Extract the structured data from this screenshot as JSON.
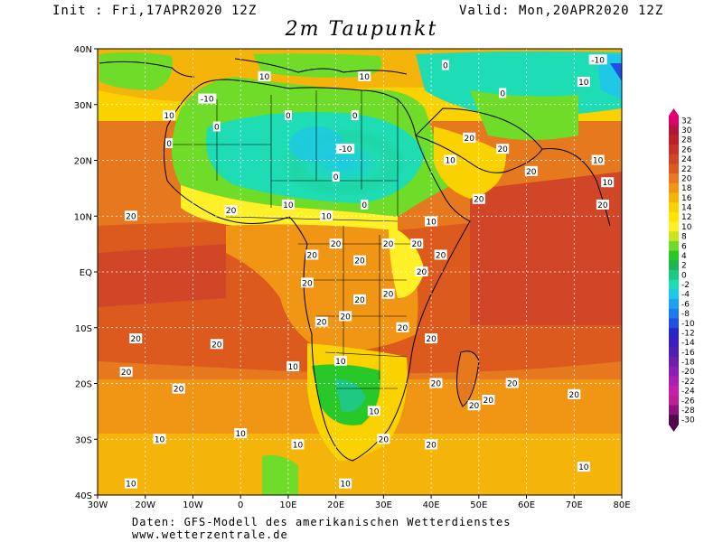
{
  "header": {
    "init": "Init : Fri,17APR2020 12Z",
    "valid": "Valid: Mon,20APR2020 12Z",
    "title": "2m Taupunkt"
  },
  "map": {
    "lon_range": [
      -30,
      80
    ],
    "lat_range": [
      -40,
      40
    ],
    "x_ticks": [
      "30W",
      "20W",
      "10W",
      "0",
      "10E",
      "20E",
      "30E",
      "40E",
      "50E",
      "60E",
      "70E",
      "80E"
    ],
    "y_ticks": [
      "40N",
      "30N",
      "20N",
      "10N",
      "EQ",
      "10S",
      "20S",
      "30S",
      "40S"
    ],
    "grid": true,
    "contour_labels": [
      {
        "text": "10",
        "lon": -15,
        "lat": 28
      },
      {
        "text": "-10",
        "lon": -7,
        "lat": 31
      },
      {
        "text": "10",
        "lon": 5,
        "lat": 35
      },
      {
        "text": "10",
        "lon": 26,
        "lat": 35
      },
      {
        "text": "0",
        "lon": 43,
        "lat": 37
      },
      {
        "text": "-10",
        "lon": 75,
        "lat": 38
      },
      {
        "text": "10",
        "lon": 72,
        "lat": 34
      },
      {
        "text": "0",
        "lon": 55,
        "lat": 32
      },
      {
        "text": "0",
        "lon": -15,
        "lat": 23
      },
      {
        "text": "0",
        "lon": -5,
        "lat": 26
      },
      {
        "text": "0",
        "lon": 10,
        "lat": 28
      },
      {
        "text": "-10",
        "lon": 22,
        "lat": 22
      },
      {
        "text": "0",
        "lon": 20,
        "lat": 17
      },
      {
        "text": "0",
        "lon": 24,
        "lat": 28
      },
      {
        "text": "10",
        "lon": 44,
        "lat": 20
      },
      {
        "text": "20",
        "lon": 48,
        "lat": 24
      },
      {
        "text": "20",
        "lon": 55,
        "lat": 22
      },
      {
        "text": "20",
        "lon": 61,
        "lat": 18
      },
      {
        "text": "10",
        "lon": 75,
        "lat": 20
      },
      {
        "text": "10",
        "lon": 77,
        "lat": 16
      },
      {
        "text": "20",
        "lon": 76,
        "lat": 12
      },
      {
        "text": "20",
        "lon": 50,
        "lat": 13
      },
      {
        "text": "20",
        "lon": -23,
        "lat": 10
      },
      {
        "text": "20",
        "lon": -2,
        "lat": 11
      },
      {
        "text": "10",
        "lon": 10,
        "lat": 12
      },
      {
        "text": "10",
        "lon": 18,
        "lat": 10
      },
      {
        "text": "0",
        "lon": 26,
        "lat": 12
      },
      {
        "text": "10",
        "lon": 40,
        "lat": 9
      },
      {
        "text": "20",
        "lon": 37,
        "lat": 5
      },
      {
        "text": "20",
        "lon": 42,
        "lat": 3
      },
      {
        "text": "20",
        "lon": 15,
        "lat": 3
      },
      {
        "text": "20",
        "lon": 20,
        "lat": 5
      },
      {
        "text": "20",
        "lon": 25,
        "lat": 2
      },
      {
        "text": "20",
        "lon": 31,
        "lat": 5
      },
      {
        "text": "20",
        "lon": 38,
        "lat": 0
      },
      {
        "text": "20",
        "lon": 14,
        "lat": -2
      },
      {
        "text": "20",
        "lon": 25,
        "lat": -5
      },
      {
        "text": "20",
        "lon": 31,
        "lat": -4
      },
      {
        "text": "20",
        "lon": 17,
        "lat": -9
      },
      {
        "text": "20",
        "lon": 22,
        "lat": -8
      },
      {
        "text": "20",
        "lon": 34,
        "lat": -10
      },
      {
        "text": "20",
        "lon": 40,
        "lat": -12
      },
      {
        "text": "20",
        "lon": -22,
        "lat": -12
      },
      {
        "text": "20",
        "lon": -5,
        "lat": -13
      },
      {
        "text": "20",
        "lon": -24,
        "lat": -18
      },
      {
        "text": "10",
        "lon": 11,
        "lat": -17
      },
      {
        "text": "10",
        "lon": 21,
        "lat": -16
      },
      {
        "text": "10",
        "lon": 28,
        "lat": -25
      },
      {
        "text": "20",
        "lon": 41,
        "lat": -20
      },
      {
        "text": "20",
        "lon": 52,
        "lat": -23
      },
      {
        "text": "20",
        "lon": 57,
        "lat": -20
      },
      {
        "text": "20",
        "lon": 70,
        "lat": -22
      },
      {
        "text": "20",
        "lon": -13,
        "lat": -21
      },
      {
        "text": "10",
        "lon": -17,
        "lat": -30
      },
      {
        "text": "10",
        "lon": 0,
        "lat": -29
      },
      {
        "text": "10",
        "lon": 12,
        "lat": -31
      },
      {
        "text": "20",
        "lon": 30,
        "lat": -30
      },
      {
        "text": "20",
        "lon": 40,
        "lat": -31
      },
      {
        "text": "10",
        "lon": 22,
        "lat": -38
      },
      {
        "text": "10",
        "lon": -23,
        "lat": -38
      },
      {
        "text": "10",
        "lon": 72,
        "lat": -35
      },
      {
        "text": "20",
        "lon": 49,
        "lat": -24
      }
    ]
  },
  "colorbar": {
    "labels": [
      "32",
      "30",
      "28",
      "26",
      "24",
      "22",
      "20",
      "18",
      "16",
      "14",
      "12",
      "10",
      "8",
      "6",
      "4",
      "2",
      "0",
      "-2",
      "-4",
      "-6",
      "-8",
      "-10",
      "-12",
      "-14",
      "-16",
      "-18",
      "-20",
      "-22",
      "-24",
      "-26",
      "-28",
      "-30"
    ],
    "colors": [
      "#de006e",
      "#b4143c",
      "#c01e28",
      "#c83228",
      "#d24628",
      "#dc5a1e",
      "#e6781e",
      "#f09614",
      "#f5b40a",
      "#fad200",
      "#ffe600",
      "#fff028",
      "#c8e61e",
      "#6edc28",
      "#28c828",
      "#1eb450",
      "#1ec882",
      "#1edcb4",
      "#1ec8e6",
      "#1ea0f0",
      "#1e78f0",
      "#1e50e6",
      "#2828c8",
      "#3c1ebe",
      "#501eb4",
      "#6e1eaa",
      "#8c1eb4",
      "#aa1eb4",
      "#c81eaa",
      "#be1e96",
      "#8c1478",
      "#500a50"
    ]
  },
  "footer": {
    "line1": "Daten: GFS-Modell des amerikanischen Wetterdienstes",
    "line2": "www.wetterzentrale.de"
  }
}
